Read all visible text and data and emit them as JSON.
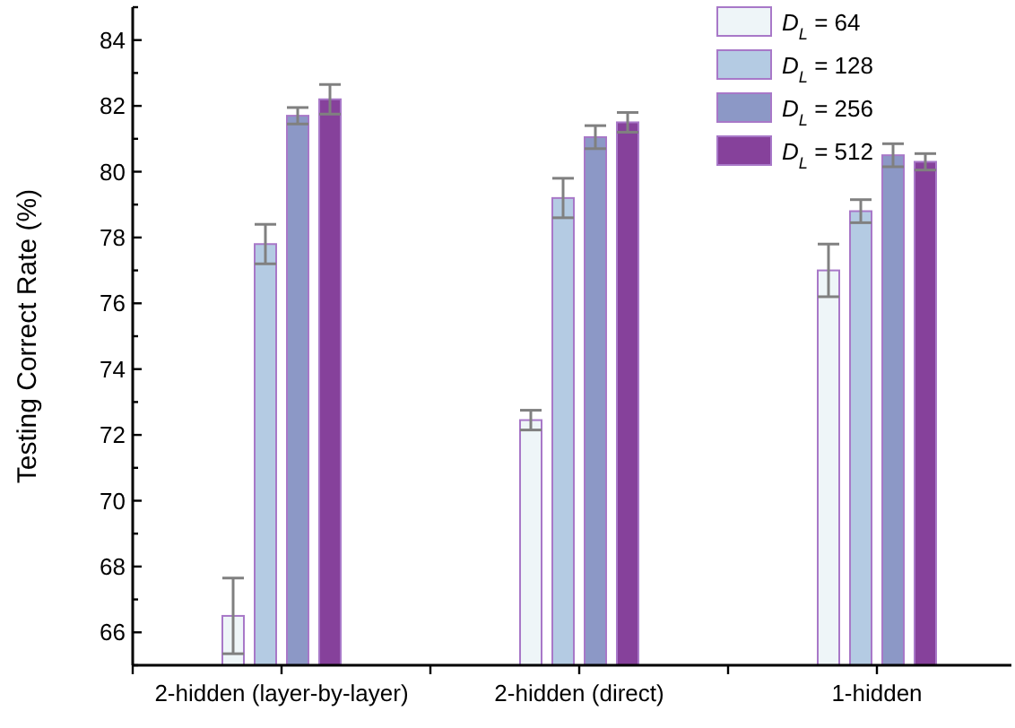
{
  "chart_data": {
    "type": "bar",
    "ylabel": "Testing Correct Rate (%)",
    "categories": [
      "2-hidden (layer-by-layer)",
      "2-hidden (direct)",
      "1-hidden"
    ],
    "series": [
      {
        "name": "D$_{L}$ = 64",
        "color": "#eef5f8",
        "values": [
          66.5,
          72.45,
          77.0
        ],
        "errors": [
          1.15,
          0.3,
          0.8
        ]
      },
      {
        "name": "D$_{L}$ = 128",
        "color": "#b4cbe3",
        "values": [
          77.8,
          79.2,
          78.8
        ],
        "errors": [
          0.6,
          0.6,
          0.35
        ]
      },
      {
        "name": "D$_{L}$ = 256",
        "color": "#8c98c6",
        "values": [
          81.7,
          81.05,
          80.5
        ],
        "errors": [
          0.25,
          0.35,
          0.35
        ]
      },
      {
        "name": "D$_{L}$ = 512",
        "color": "#86419b",
        "values": [
          82.2,
          81.5,
          80.3
        ],
        "errors": [
          0.45,
          0.3,
          0.25
        ]
      }
    ],
    "ylim": [
      65,
      85
    ],
    "yticks": [
      {
        "value": 65,
        "label": null
      },
      66,
      {
        "value": 67,
        "label": null
      },
      68,
      {
        "value": 69,
        "label": null
      },
      70,
      {
        "value": 71,
        "label": null
      },
      72,
      {
        "value": 73,
        "label": null
      },
      74,
      {
        "value": 75,
        "label": null
      },
      76,
      {
        "value": 77,
        "label": null
      },
      78,
      {
        "value": 79,
        "label": null
      },
      80,
      {
        "value": 81,
        "label": null
      },
      82,
      {
        "value": 83,
        "label": null
      },
      84,
      {
        "value": 85,
        "label": null
      }
    ],
    "legend": "top right",
    "grid": false
  }
}
